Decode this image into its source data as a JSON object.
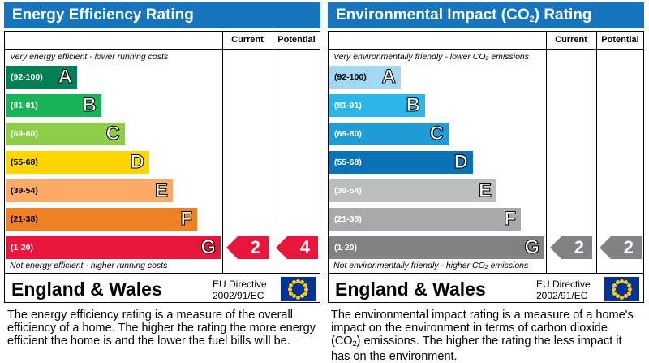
{
  "energy": {
    "title": "Energy Efficiency Rating",
    "col_current": "Current",
    "col_potential": "Potential",
    "note_top": "Very energy efficient - lower running costs",
    "note_bottom": "Not energy efficient - higher running costs",
    "bands": [
      {
        "range": "(92-100)",
        "letter": "A",
        "color": "#008054"
      },
      {
        "range": "(81-91)",
        "letter": "B",
        "color": "#19b459"
      },
      {
        "range": "(69-80)",
        "letter": "C",
        "color": "#8dce46"
      },
      {
        "range": "(55-68)",
        "letter": "D",
        "color": "#ffd500"
      },
      {
        "range": "(39-54)",
        "letter": "E",
        "color": "#fcaa65"
      },
      {
        "range": "(21-38)",
        "letter": "F",
        "color": "#ef8023"
      },
      {
        "range": "(1-20)",
        "letter": "G",
        "color": "#e9153b"
      }
    ],
    "current": {
      "value": "2",
      "band": "G",
      "color": "#e9153b"
    },
    "potential": {
      "value": "4",
      "band": "G",
      "color": "#e9153b"
    },
    "region": "England & Wales",
    "directive_line1": "EU Directive",
    "directive_line2": "2002/91/EC",
    "description": "The energy efficiency rating is a measure of the overall efficiency of a home. The higher the rating the more energy efficient the home is and the lower the fuel bills will be."
  },
  "environment": {
    "title_main": "Environmental Impact (CO",
    "title_sub": "2",
    "title_end": ") Rating",
    "col_current": "Current",
    "col_potential": "Potential",
    "note_top_main": "Very environmentally friendly - lower CO",
    "note_top_sub": "2",
    "note_top_end": " emissions",
    "note_bottom_main": "Not environmentally friendly - higher CO",
    "note_bottom_sub": "2",
    "note_bottom_end": " emissions",
    "bands": [
      {
        "range": "(92-100)",
        "letter": "A",
        "color": "#a3d8f4"
      },
      {
        "range": "(81-91)",
        "letter": "B",
        "color": "#2cb5e8"
      },
      {
        "range": "(69-80)",
        "letter": "C",
        "color": "#1f9bd6"
      },
      {
        "range": "(55-68)",
        "letter": "D",
        "color": "#0c72b8"
      },
      {
        "range": "(39-54)",
        "letter": "E",
        "color": "#bbbdbf"
      },
      {
        "range": "(21-38)",
        "letter": "F",
        "color": "#a7a9ac"
      },
      {
        "range": "(1-20)",
        "letter": "G",
        "color": "#808285"
      }
    ],
    "current": {
      "value": "2",
      "band": "G",
      "color": "#808285"
    },
    "potential": {
      "value": "2",
      "band": "G",
      "color": "#808285"
    },
    "region": "England & Wales",
    "directive_line1": "EU Directive",
    "directive_line2": "2002/91/EC",
    "desc_main": "The environmental impact rating is a measure of a home's impact on the environment in terms of carbon dioxide (CO",
    "desc_sub": "2",
    "desc_end": ") emissions. The higher the rating the less impact it has on the environment."
  }
}
